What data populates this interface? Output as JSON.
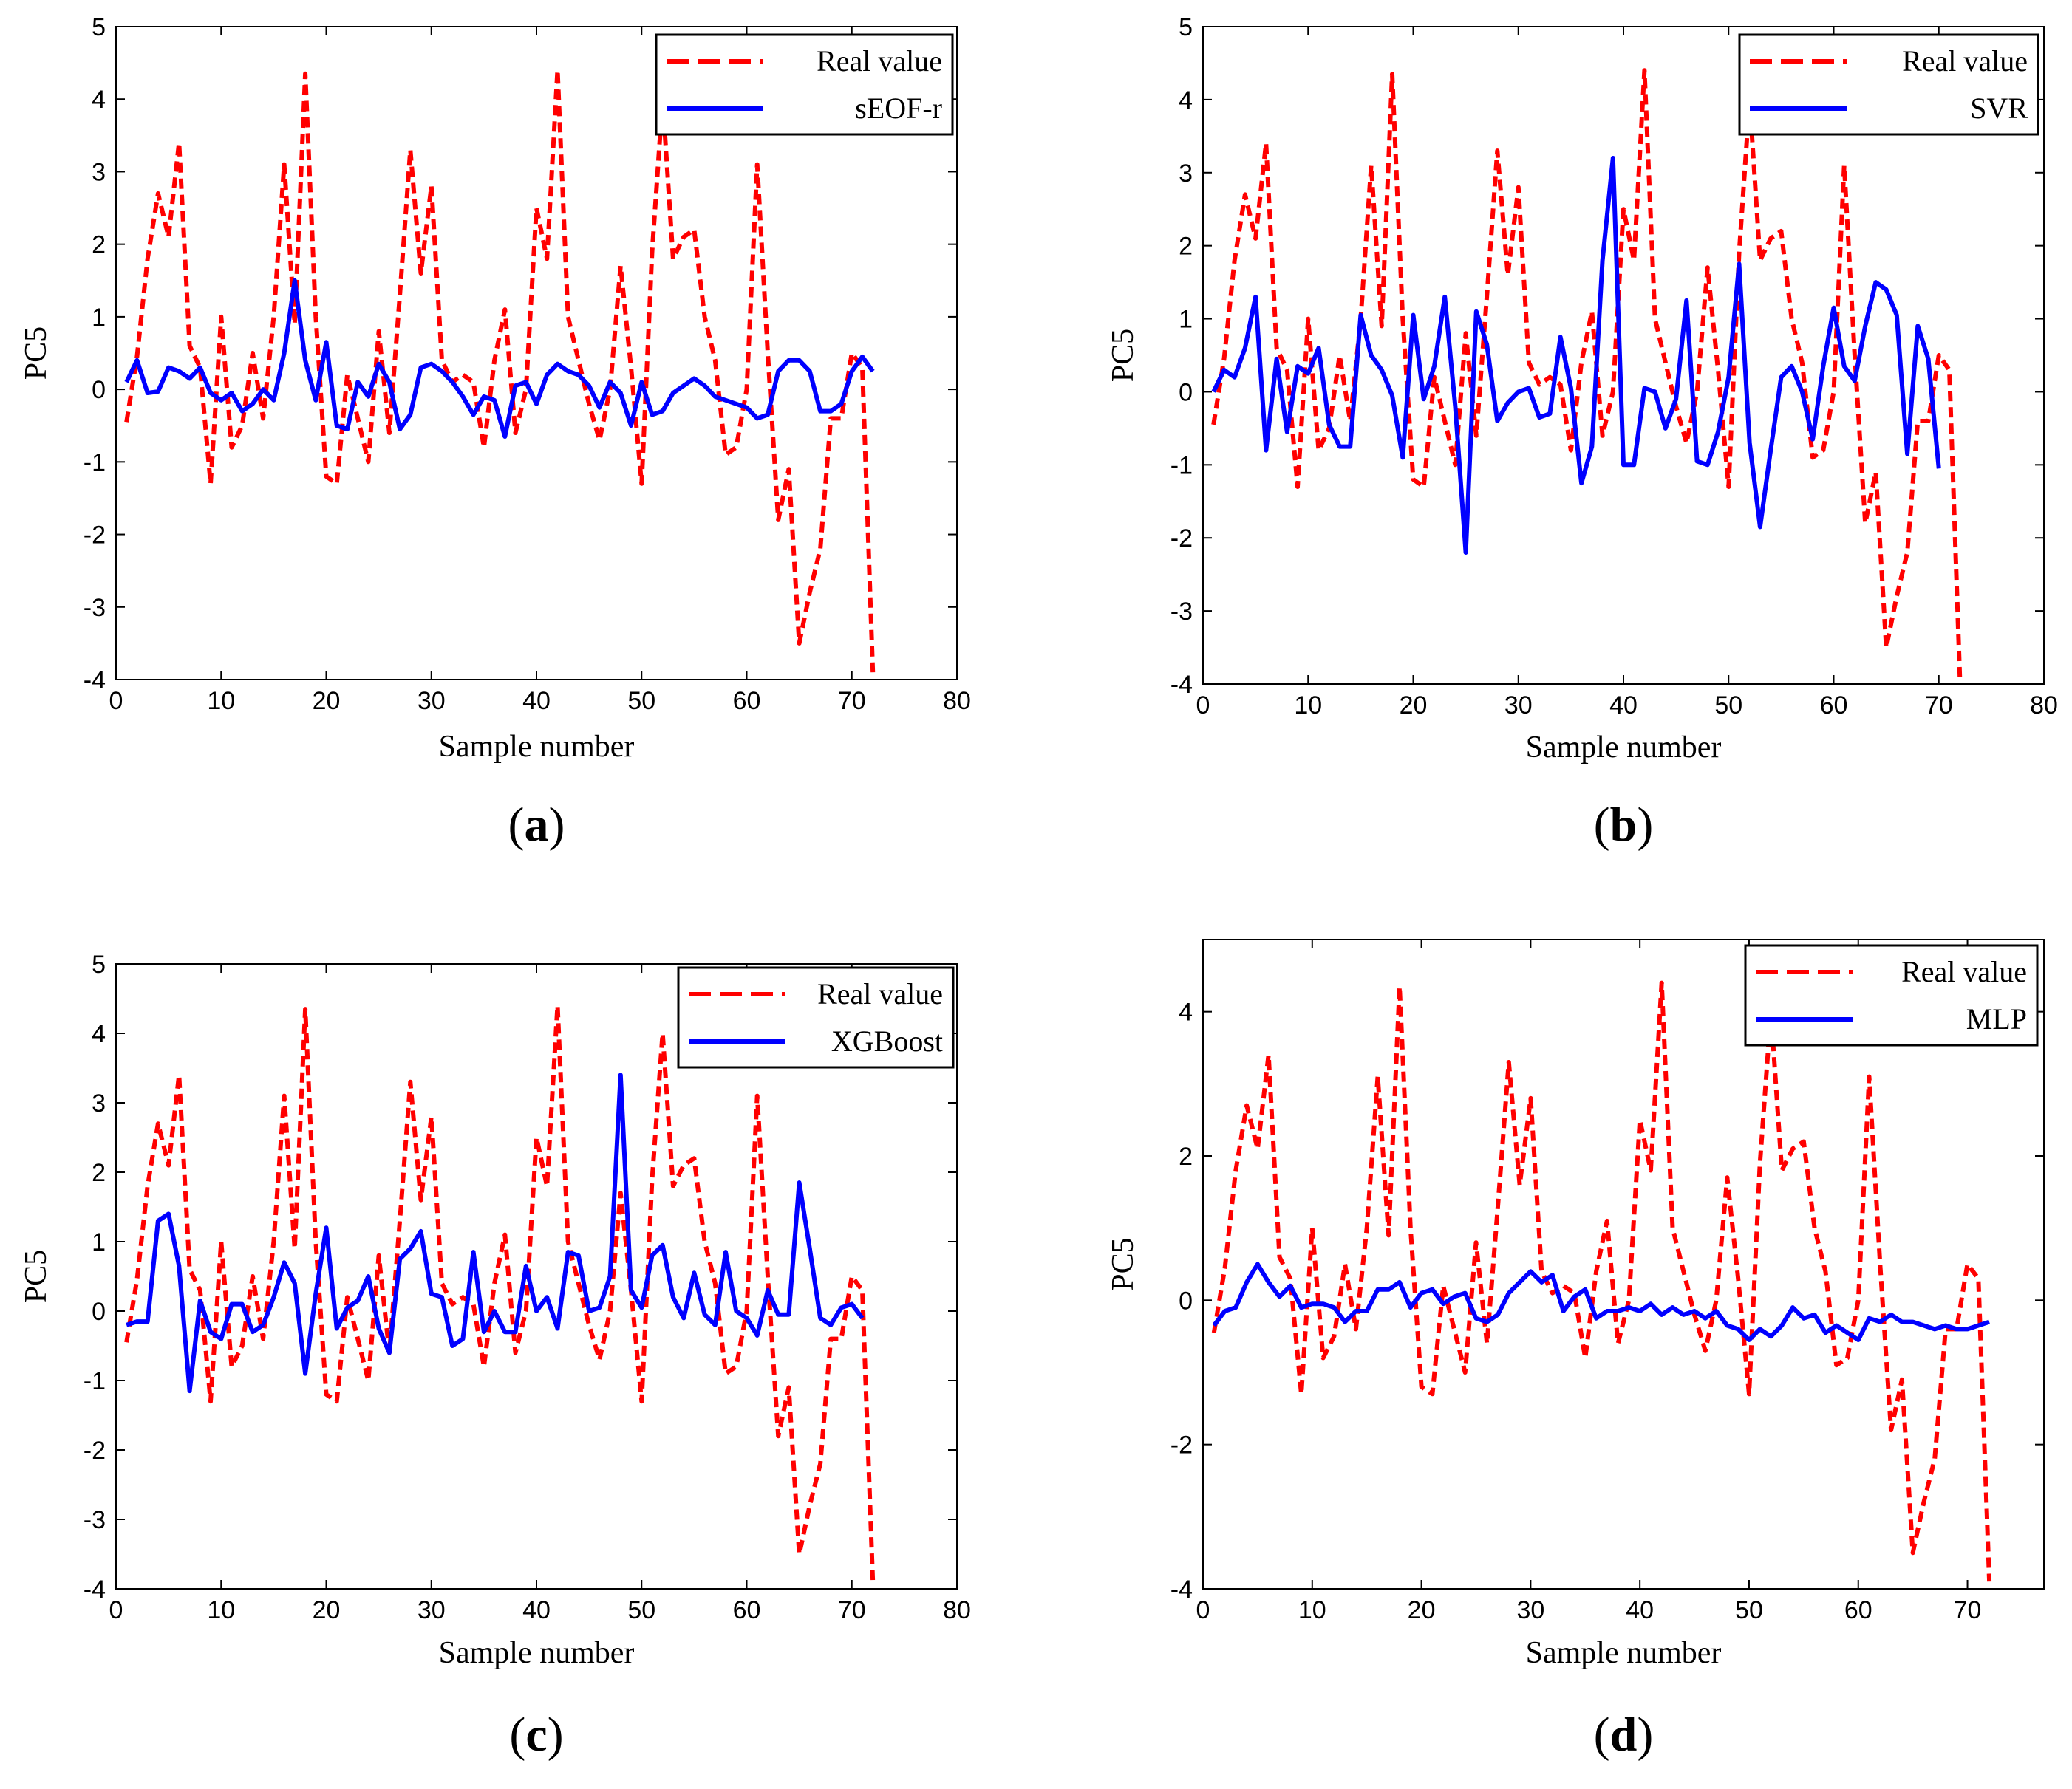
{
  "colors": {
    "real": "#ff0000",
    "pred": "#0000ff",
    "axis": "#000000"
  },
  "chart_data": [
    {
      "type": "line",
      "caption_letter": "a",
      "xlabel": "Sample number",
      "ylabel": "PC5",
      "xlim": [
        0,
        80
      ],
      "ylim": [
        -4,
        5
      ],
      "xticks": [
        0,
        10,
        20,
        30,
        40,
        50,
        60,
        70,
        80
      ],
      "yticks": [
        -4,
        -3,
        -2,
        -1,
        0,
        1,
        2,
        3,
        4,
        5
      ],
      "legend_position": "top-right",
      "series": [
        {
          "name": "Real value",
          "style": "dashed",
          "values": [
            -0.45,
            0.45,
            1.8,
            2.7,
            2.1,
            3.4,
            0.6,
            0.3,
            -1.3,
            1.0,
            -0.8,
            -0.5,
            0.5,
            -0.4,
            1.0,
            3.1,
            0.9,
            4.35,
            1.0,
            -1.2,
            -1.3,
            0.2,
            -0.4,
            -1.0,
            0.8,
            -0.6,
            1.3,
            3.3,
            1.6,
            2.8,
            0.4,
            0.1,
            0.2,
            0.1,
            -0.8,
            0.4,
            1.1,
            -0.6,
            0.0,
            2.5,
            1.8,
            4.4,
            1.0,
            0.4,
            -0.2,
            -0.7,
            0.0,
            1.7,
            0.3,
            -1.3,
            1.9,
            4.0,
            1.8,
            2.1,
            2.2,
            1.0,
            0.4,
            -0.9,
            -0.8,
            0.0,
            3.1,
            0.5,
            -1.8,
            -1.1,
            -3.5,
            -2.8,
            -2.2,
            -0.4,
            -0.4,
            0.5,
            0.3,
            -3.9
          ]
        },
        {
          "name": "sEOF-r",
          "style": "solid",
          "values": [
            0.1,
            0.4,
            -0.05,
            -0.03,
            0.3,
            0.25,
            0.15,
            0.3,
            -0.05,
            -0.15,
            -0.05,
            -0.3,
            -0.2,
            0.0,
            -0.15,
            0.5,
            1.5,
            0.4,
            -0.15,
            0.65,
            -0.5,
            -0.55,
            0.1,
            -0.1,
            0.35,
            0.1,
            -0.55,
            -0.35,
            0.3,
            0.35,
            0.25,
            0.1,
            -0.1,
            -0.35,
            -0.1,
            -0.15,
            -0.65,
            0.05,
            0.1,
            -0.2,
            0.2,
            0.35,
            0.25,
            0.2,
            0.05,
            -0.25,
            0.1,
            -0.05,
            -0.5,
            0.1,
            -0.35,
            -0.3,
            -0.05,
            0.05,
            0.15,
            0.05,
            -0.1,
            -0.15,
            -0.2,
            -0.25,
            -0.4,
            -0.35,
            0.25,
            0.4,
            0.4,
            0.25,
            -0.3,
            -0.3,
            -0.2,
            0.25,
            0.45,
            0.25
          ]
        }
      ]
    },
    {
      "type": "line",
      "caption_letter": "b",
      "xlabel": "Sample number",
      "ylabel": "PC5",
      "xlim": [
        0,
        80
      ],
      "ylim": [
        -4,
        5
      ],
      "xticks": [
        0,
        10,
        20,
        30,
        40,
        50,
        60,
        70,
        80
      ],
      "yticks": [
        -4,
        -3,
        -2,
        -1,
        0,
        1,
        2,
        3,
        4,
        5
      ],
      "legend_position": "top-right",
      "series": [
        {
          "name": "Real value",
          "style": "dashed",
          "values": [
            -0.45,
            0.45,
            1.8,
            2.7,
            2.1,
            3.4,
            0.6,
            0.3,
            -1.3,
            1.0,
            -0.8,
            -0.5,
            0.5,
            -0.4,
            1.0,
            3.1,
            0.9,
            4.35,
            1.0,
            -1.2,
            -1.3,
            0.2,
            -0.4,
            -1.0,
            0.8,
            -0.6,
            1.3,
            3.3,
            1.6,
            2.8,
            0.4,
            0.1,
            0.2,
            0.1,
            -0.8,
            0.4,
            1.1,
            -0.6,
            0.0,
            2.5,
            1.8,
            4.4,
            1.0,
            0.4,
            -0.2,
            -0.7,
            0.0,
            1.7,
            0.3,
            -1.3,
            1.9,
            4.0,
            1.8,
            2.1,
            2.2,
            1.0,
            0.4,
            -0.9,
            -0.8,
            0.0,
            3.1,
            0.5,
            -1.8,
            -1.1,
            -3.5,
            -2.8,
            -2.2,
            -0.4,
            -0.4,
            0.5,
            0.3,
            -3.9
          ]
        },
        {
          "name": "SVR",
          "style": "solid",
          "values": [
            0.0,
            0.3,
            0.2,
            0.6,
            1.3,
            -0.8,
            0.45,
            -0.55,
            0.35,
            0.25,
            0.6,
            -0.45,
            -0.75,
            -0.75,
            1.05,
            0.5,
            0.3,
            -0.05,
            -0.9,
            1.05,
            -0.1,
            0.35,
            1.3,
            -0.2,
            -2.2,
            1.1,
            0.65,
            -0.4,
            -0.15,
            0.0,
            0.05,
            -0.35,
            -0.3,
            0.75,
            0.05,
            -1.25,
            -0.75,
            1.8,
            3.2,
            -1.0,
            -1.0,
            0.05,
            0.0,
            -0.5,
            -0.1,
            1.25,
            -0.95,
            -1.0,
            -0.55,
            0.2,
            1.75,
            -0.7,
            -1.85,
            -0.8,
            0.2,
            0.35,
            0.0,
            -0.65,
            0.35,
            1.15,
            0.35,
            0.15,
            0.9,
            1.5,
            1.4,
            1.05,
            -0.85,
            0.9,
            0.45,
            -1.05
          ]
        }
      ]
    },
    {
      "type": "line",
      "caption_letter": "c",
      "xlabel": "Sample number",
      "ylabel": "PC5",
      "xlim": [
        0,
        80
      ],
      "ylim": [
        -4,
        5
      ],
      "xticks": [
        0,
        10,
        20,
        30,
        40,
        50,
        60,
        70,
        80
      ],
      "yticks": [
        -4,
        -3,
        -2,
        -1,
        0,
        1,
        2,
        3,
        4,
        5
      ],
      "legend_position": "top-right",
      "series": [
        {
          "name": "Real value",
          "style": "dashed",
          "values": [
            -0.45,
            0.45,
            1.8,
            2.7,
            2.1,
            3.4,
            0.6,
            0.3,
            -1.3,
            1.0,
            -0.8,
            -0.5,
            0.5,
            -0.4,
            1.0,
            3.1,
            0.9,
            4.35,
            1.0,
            -1.2,
            -1.3,
            0.2,
            -0.4,
            -1.0,
            0.8,
            -0.6,
            1.3,
            3.3,
            1.6,
            2.8,
            0.4,
            0.1,
            0.2,
            0.1,
            -0.8,
            0.4,
            1.1,
            -0.6,
            0.0,
            2.5,
            1.8,
            4.4,
            1.0,
            0.4,
            -0.2,
            -0.7,
            0.0,
            1.7,
            0.3,
            -1.3,
            1.9,
            4.0,
            1.8,
            2.1,
            2.2,
            1.0,
            0.4,
            -0.9,
            -0.8,
            0.0,
            3.1,
            0.5,
            -1.8,
            -1.1,
            -3.5,
            -2.8,
            -2.2,
            -0.4,
            -0.4,
            0.5,
            0.3,
            -3.9
          ]
        },
        {
          "name": "XGBoost",
          "style": "solid",
          "values": [
            -0.2,
            -0.15,
            -0.15,
            1.3,
            1.4,
            0.65,
            -1.15,
            0.15,
            -0.3,
            -0.4,
            0.1,
            0.1,
            -0.3,
            -0.2,
            0.2,
            0.7,
            0.4,
            -0.9,
            0.25,
            1.2,
            -0.25,
            0.05,
            0.15,
            0.5,
            -0.25,
            -0.6,
            0.75,
            0.9,
            1.15,
            0.25,
            0.2,
            -0.5,
            -0.4,
            0.85,
            -0.3,
            0.0,
            -0.3,
            -0.3,
            0.65,
            0.0,
            0.2,
            -0.25,
            0.85,
            0.8,
            0.0,
            0.05,
            0.5,
            3.4,
            0.3,
            0.05,
            0.8,
            0.95,
            0.2,
            -0.1,
            0.55,
            -0.05,
            -0.2,
            0.85,
            0.0,
            -0.1,
            -0.35,
            0.3,
            -0.05,
            -0.05,
            1.85,
            0.9,
            -0.1,
            -0.2,
            0.05,
            0.1,
            -0.1
          ]
        }
      ]
    },
    {
      "type": "line",
      "caption_letter": "d",
      "xlabel": "Sample number",
      "ylabel": "PC5",
      "xlim": [
        0,
        77
      ],
      "ylim": [
        -4,
        5
      ],
      "xticks": [
        0,
        10,
        20,
        30,
        40,
        50,
        60,
        70
      ],
      "yticks": [
        -4,
        -2,
        0,
        2,
        4
      ],
      "legend_position": "top-right",
      "series": [
        {
          "name": "Real value",
          "style": "dashed",
          "values": [
            -0.45,
            0.45,
            1.8,
            2.7,
            2.1,
            3.4,
            0.6,
            0.3,
            -1.3,
            1.0,
            -0.8,
            -0.5,
            0.5,
            -0.4,
            1.0,
            3.1,
            0.9,
            4.35,
            1.0,
            -1.2,
            -1.3,
            0.2,
            -0.4,
            -1.0,
            0.8,
            -0.6,
            1.3,
            3.3,
            1.6,
            2.8,
            0.4,
            0.1,
            0.2,
            0.1,
            -0.8,
            0.4,
            1.1,
            -0.6,
            0.0,
            2.5,
            1.8,
            4.4,
            1.0,
            0.4,
            -0.2,
            -0.7,
            0.0,
            1.7,
            0.3,
            -1.3,
            1.9,
            4.0,
            1.8,
            2.1,
            2.2,
            1.0,
            0.4,
            -0.9,
            -0.8,
            0.0,
            3.1,
            0.5,
            -1.8,
            -1.1,
            -3.5,
            -2.8,
            -2.2,
            -0.4,
            -0.4,
            0.5,
            0.3,
            -3.9
          ]
        },
        {
          "name": "MLP",
          "style": "solid",
          "values": [
            -0.35,
            -0.15,
            -0.1,
            0.25,
            0.5,
            0.25,
            0.05,
            0.2,
            -0.1,
            -0.05,
            -0.05,
            -0.1,
            -0.3,
            -0.15,
            -0.15,
            0.15,
            0.15,
            0.25,
            -0.1,
            0.1,
            0.15,
            -0.05,
            0.05,
            0.1,
            -0.25,
            -0.3,
            -0.2,
            0.1,
            0.25,
            0.4,
            0.25,
            0.35,
            -0.15,
            0.05,
            0.15,
            -0.25,
            -0.15,
            -0.15,
            -0.1,
            -0.15,
            -0.05,
            -0.2,
            -0.1,
            -0.2,
            -0.15,
            -0.25,
            -0.15,
            -0.35,
            -0.4,
            -0.55,
            -0.4,
            -0.5,
            -0.35,
            -0.1,
            -0.25,
            -0.2,
            -0.45,
            -0.35,
            -0.45,
            -0.55,
            -0.25,
            -0.3,
            -0.2,
            -0.3,
            -0.3,
            -0.35,
            -0.4,
            -0.35,
            -0.4,
            -0.4,
            -0.35,
            -0.3
          ]
        }
      ]
    }
  ]
}
